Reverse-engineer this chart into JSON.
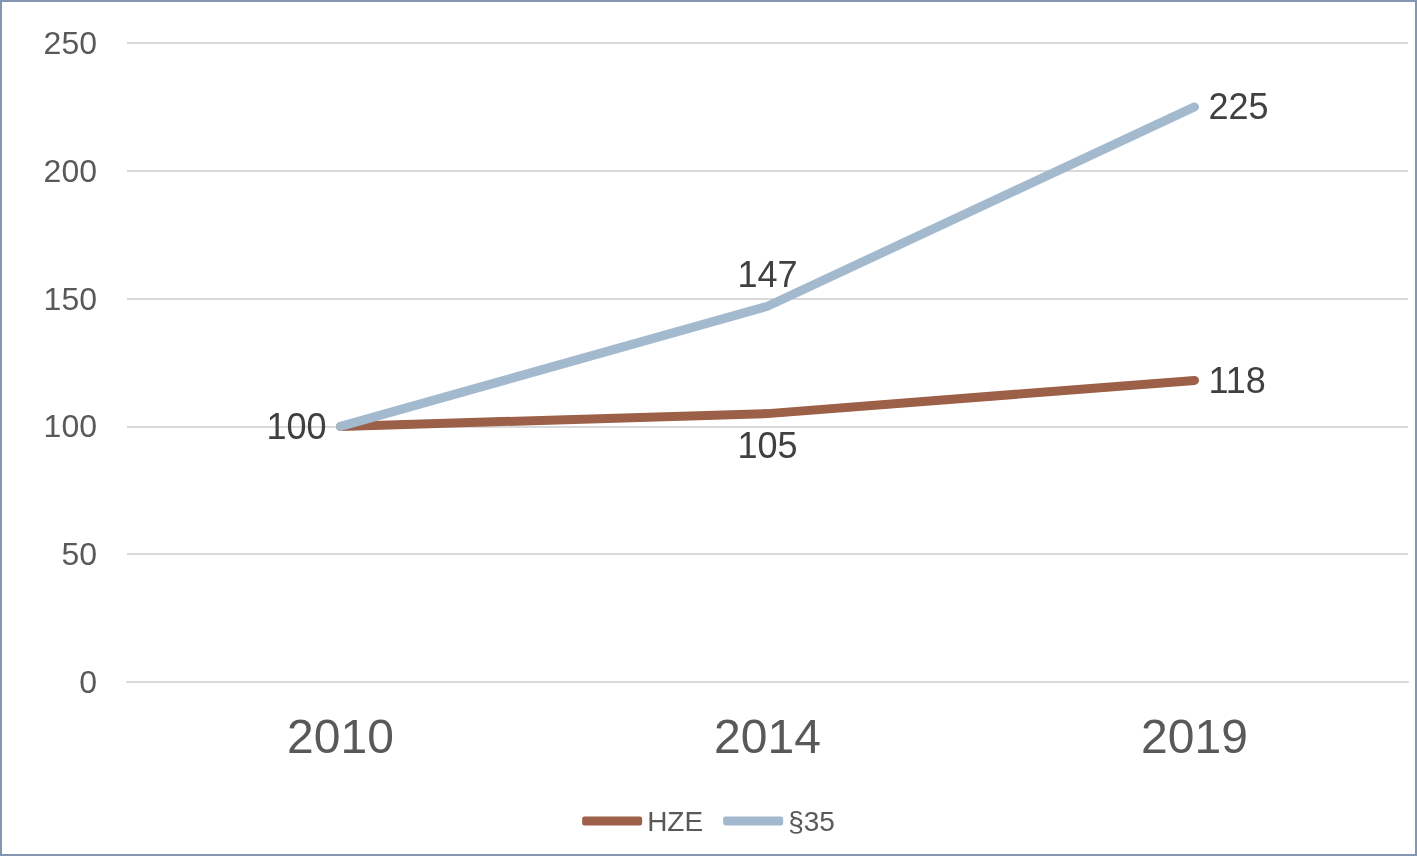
{
  "chart_data": {
    "type": "line",
    "categories": [
      "2010",
      "2014",
      "2019"
    ],
    "series": [
      {
        "name": "HZE",
        "color": "#9c5f47",
        "values": [
          100,
          105,
          118
        ],
        "value_labels": [
          "100",
          "105",
          "118"
        ]
      },
      {
        "name": "§35",
        "color": "#a3b9ce",
        "values": [
          100,
          147,
          225
        ],
        "value_labels": [
          null,
          "147",
          "225"
        ]
      }
    ],
    "ylim": [
      0,
      250
    ],
    "yticks": [
      0,
      50,
      100,
      150,
      200,
      250
    ],
    "grid": "y",
    "legend": "bottom",
    "marker": "none",
    "line_style": "solid"
  }
}
